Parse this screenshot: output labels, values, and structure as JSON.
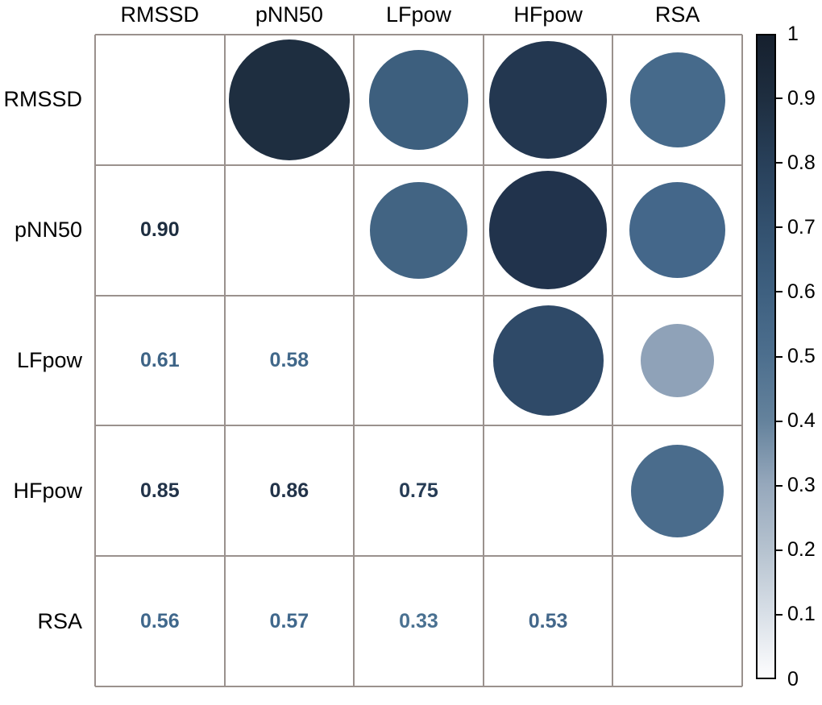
{
  "chart_data": {
    "type": "heatmap",
    "subtype": "correlation-matrix-circles",
    "title": "",
    "variables": [
      "RMSSD",
      "pNN50",
      "LFpow",
      "HFpow",
      "RSA"
    ],
    "pairs": [
      {
        "a": "RMSSD",
        "b": "pNN50",
        "ai": 0,
        "bi": 1,
        "value": 0.9,
        "label": "0.90",
        "circle_color": "#1e2e40",
        "text_color": "#1e2e40"
      },
      {
        "a": "RMSSD",
        "b": "LFpow",
        "ai": 0,
        "bi": 2,
        "value": 0.61,
        "label": "0.61",
        "circle_color": "#3d5f7e",
        "text_color": "#3e6486"
      },
      {
        "a": "RMSSD",
        "b": "HFpow",
        "ai": 0,
        "bi": 3,
        "value": 0.85,
        "label": "0.85",
        "circle_color": "#233750",
        "text_color": "#223349"
      },
      {
        "a": "RMSSD",
        "b": "RSA",
        "ai": 0,
        "bi": 4,
        "value": 0.56,
        "label": "0.56",
        "circle_color": "#466a8b",
        "text_color": "#40688c"
      },
      {
        "a": "pNN50",
        "b": "LFpow",
        "ai": 1,
        "bi": 2,
        "value": 0.58,
        "label": "0.58",
        "circle_color": "#426483",
        "text_color": "#41688a"
      },
      {
        "a": "pNN50",
        "b": "HFpow",
        "ai": 1,
        "bi": 3,
        "value": 0.86,
        "label": "0.86",
        "circle_color": "#21334c",
        "text_color": "#223349"
      },
      {
        "a": "pNN50",
        "b": "RSA",
        "ai": 1,
        "bi": 4,
        "value": 0.57,
        "label": "0.57",
        "circle_color": "#44678a",
        "text_color": "#40688c"
      },
      {
        "a": "LFpow",
        "b": "HFpow",
        "ai": 2,
        "bi": 3,
        "value": 0.75,
        "label": "0.75",
        "circle_color": "#2f4a68",
        "text_color": "#263c55"
      },
      {
        "a": "LFpow",
        "b": "RSA",
        "ai": 2,
        "bi": 4,
        "value": 0.33,
        "label": "0.33",
        "circle_color": "#8fa2b8",
        "text_color": "#4a7191"
      },
      {
        "a": "HFpow",
        "b": "RSA",
        "ai": 3,
        "bi": 4,
        "value": 0.53,
        "label": "0.53",
        "circle_color": "#4a6c8c",
        "text_color": "#43678a"
      }
    ],
    "upper_triangle": "circles sized and colored by correlation",
    "lower_triangle": "numeric correlation values",
    "diagonal": "empty",
    "colorbar": {
      "range": [
        0,
        1
      ],
      "tick_labels": [
        "1",
        "0.9",
        "0.8",
        "0.7",
        "0.6",
        "0.5",
        "0.4",
        "0.3",
        "0.2",
        "0.1",
        "0"
      ],
      "tick_values": [
        1,
        0.9,
        0.8,
        0.7,
        0.6,
        0.5,
        0.4,
        0.3,
        0.2,
        0.1,
        0
      ],
      "gradient_stops": [
        {
          "v": 1.0,
          "color": "#16202e"
        },
        {
          "v": 0.9,
          "color": "#1e2e40"
        },
        {
          "v": 0.8,
          "color": "#28405a"
        },
        {
          "v": 0.7,
          "color": "#33516f"
        },
        {
          "v": 0.6,
          "color": "#3e6080"
        },
        {
          "v": 0.5,
          "color": "#4d6f8e"
        },
        {
          "v": 0.4,
          "color": "#64829c"
        },
        {
          "v": 0.3,
          "color": "#96a8bc"
        },
        {
          "v": 0.2,
          "color": "#b5c2cf"
        },
        {
          "v": 0.1,
          "color": "#d8dfe7"
        },
        {
          "v": 0.0,
          "color": "#fdfdfe"
        }
      ]
    }
  },
  "colors": {
    "background": "#ffffff",
    "grid_line": "#9a918d",
    "label_text": "#000000",
    "colorbar_border": "#000000"
  }
}
